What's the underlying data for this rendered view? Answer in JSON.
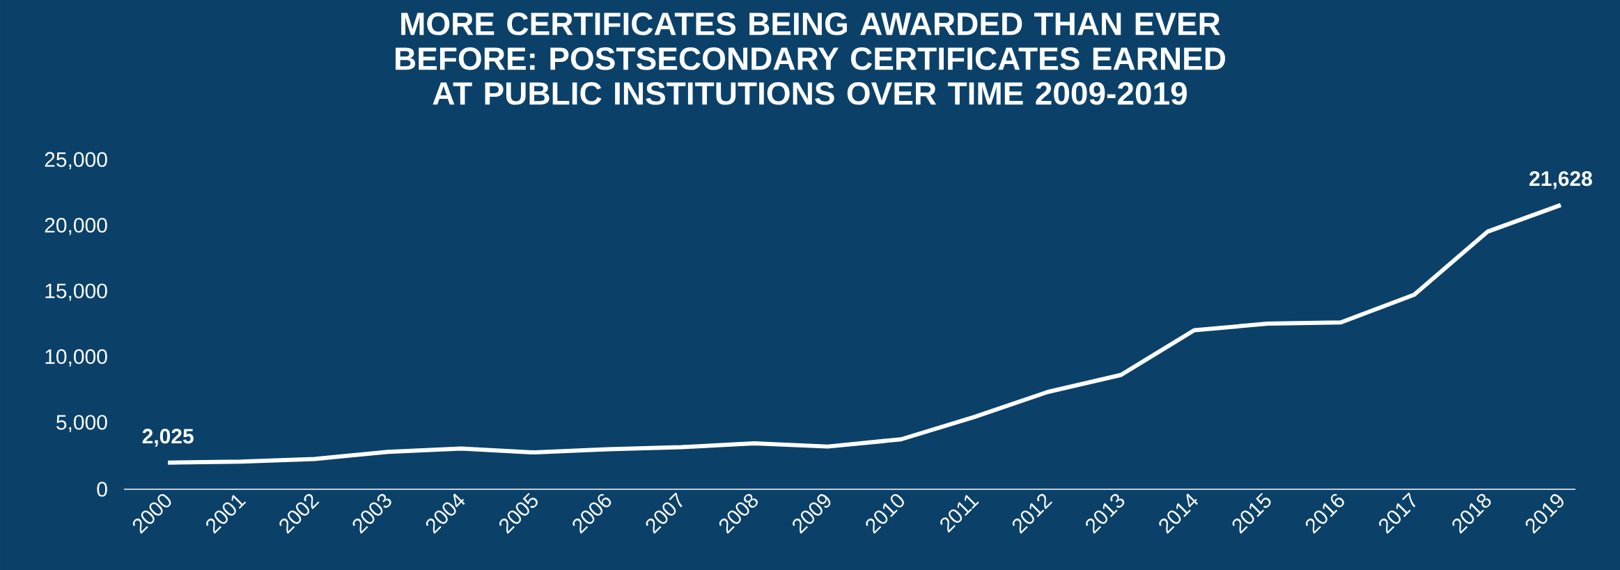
{
  "chart_data": {
    "type": "line",
    "title": "MORE CERTIFICATES BEING AWARDED THAN EVER BEFORE: POSTSECONDARY CERTIFICATES EARNED AT PUBLIC INSTITUTIONS OVER TIME 2009-2019",
    "categories": [
      "2000",
      "2001",
      "2002",
      "2003",
      "2004",
      "2005",
      "2006",
      "2007",
      "2008",
      "2009",
      "2010",
      "2011",
      "2012",
      "2013",
      "2014",
      "2015",
      "2016",
      "2017",
      "2018",
      "2019"
    ],
    "series": [
      {
        "color": "#ffffff",
        "values": [
          2025,
          2100,
          2300,
          2850,
          3100,
          2800,
          3050,
          3200,
          3500,
          3250,
          3800,
          5500,
          7400,
          8700,
          12100,
          12600,
          12700,
          14800,
          19600,
          21628
        ],
        "value_labels": [
          "2,025",
          null,
          null,
          null,
          null,
          null,
          null,
          null,
          null,
          null,
          null,
          null,
          null,
          null,
          null,
          null,
          null,
          null,
          null,
          "21,628"
        ]
      }
    ],
    "ylim": [
      0,
      25000
    ],
    "yticks": [
      0,
      {
        "value": 5000,
        "label": "5,000"
      },
      {
        "value": 10000,
        "label": "10,000"
      },
      {
        "value": 15000,
        "label": "15,000"
      },
      {
        "value": 20000,
        "label": "20,000"
      },
      {
        "value": 25000,
        "label": "25,000"
      }
    ],
    "grid": false,
    "marker": "none",
    "line_style": "solid"
  }
}
